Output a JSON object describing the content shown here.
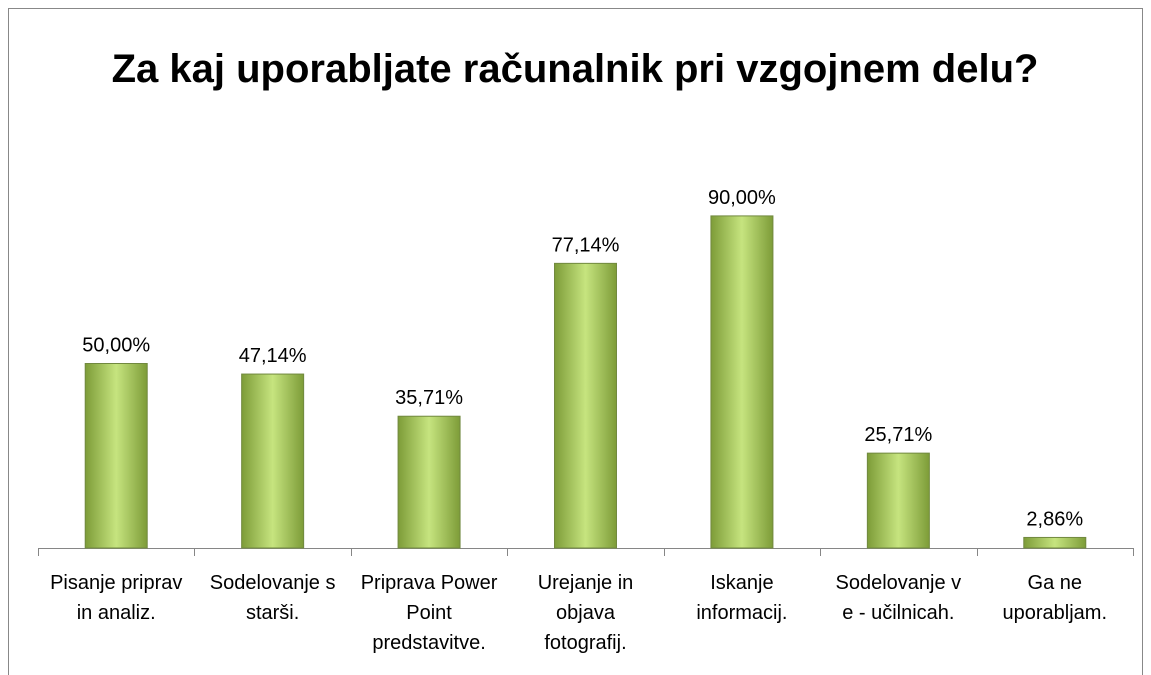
{
  "chart_data": {
    "type": "bar",
    "title": "Za kaj uporabljate računalnik pri vzgojnem delu?",
    "categories": [
      "Pisanje priprav in analiz.",
      "Sodelovanje s starši.",
      "Priprava Power Point predstavitve.",
      "Urejanje in objava fotografij.",
      "Iskanje informacij.",
      "Sodelovanje v e - učilnicah.",
      "Ga ne uporabljam."
    ],
    "values": [
      50,
      47.14,
      35.71,
      77.14,
      90,
      25.71,
      2.86
    ],
    "value_labels": [
      "50,00%",
      "47,14%",
      "35,71%",
      "77,14%",
      "90,00%",
      "25,71%",
      "2,86%"
    ],
    "color": "#9bbb59",
    "ylim": [
      0,
      100
    ]
  }
}
